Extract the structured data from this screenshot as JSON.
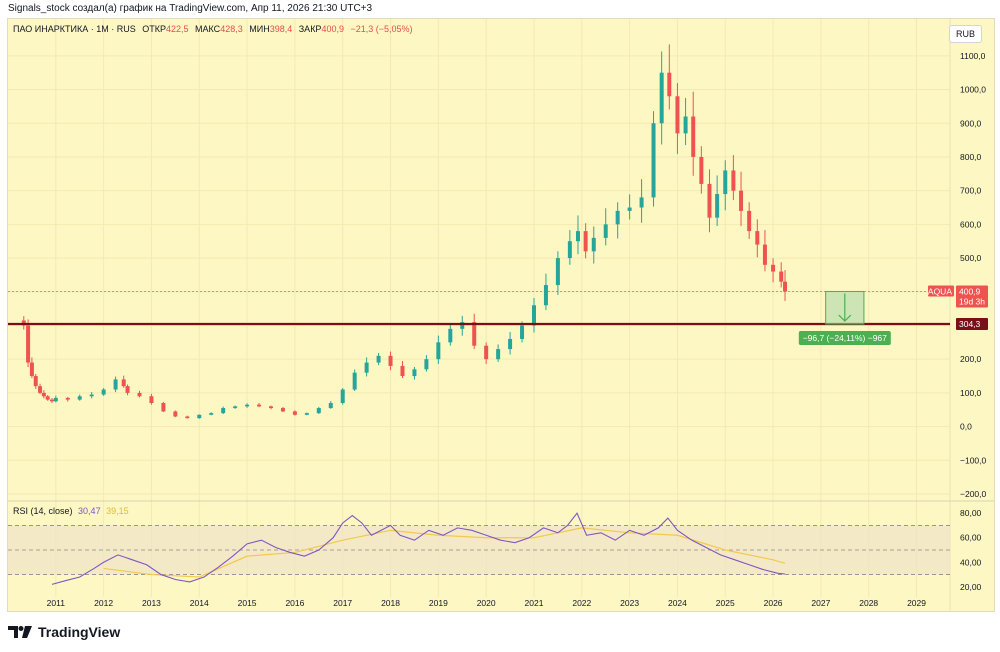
{
  "header": {
    "attribution": "Signals_stock создал(а) график на TradingView.com, Апр 11, 2026 21:30 UTC+3"
  },
  "legend": {
    "symbol": "ПАО ИНАРКТИКА · 1М · RUS",
    "open_label": "ОТКР",
    "open_value": "422,5",
    "high_label": "МАКС",
    "high_value": "428,3",
    "low_label": "МИН",
    "low_value": "398,4",
    "close_label": "ЗАКР",
    "close_value": "400,9",
    "change": "−21,3 (−5,05%)"
  },
  "currency": "RUB",
  "price_tags": {
    "ticker": "AQUA",
    "last_price": "400,9",
    "countdown": "19d 3h",
    "level": "304,3"
  },
  "measure_label": "−96,7 (−24,11%) −967",
  "rsi_legend": {
    "label": "RSI (14, close)",
    "rsi_value": "30,47",
    "ma_value": "39,15"
  },
  "footer": {
    "logo_text": "TradingView"
  },
  "colors": {
    "background": "#fdf7c4",
    "up": "#26a69a",
    "down": "#ef5350",
    "level_line": "#7b0f19",
    "rsi_line": "#7e57c2",
    "rsi_ma": "#f2c94c",
    "measure_box": "#4caf50"
  },
  "chart_data": [
    {
      "type": "candlestick",
      "title": "ПАО ИНАРКТИКА · 1М · RUS",
      "ylabel": "RUB",
      "ylim": [
        -200,
        1150
      ],
      "yticks": [
        -200,
        -100,
        0,
        100,
        200,
        300,
        400,
        500,
        600,
        700,
        800,
        900,
        1000,
        1100
      ],
      "ytick_labels": [
        "−200,0",
        "−100,0",
        "0,0",
        "100,0",
        "200,0",
        "300,0",
        "400,0",
        "500,0",
        "600,0",
        "700,0",
        "800,0",
        "900,0",
        "1000,0",
        "1100,0"
      ],
      "xlim": [
        2010.0,
        2029.7
      ],
      "xticks": [
        2011,
        2012,
        2013,
        2014,
        2015,
        2016,
        2017,
        2018,
        2019,
        2020,
        2021,
        2022,
        2023,
        2024,
        2025,
        2026,
        2027,
        2028,
        2029
      ],
      "x": [
        2010.33,
        2010.42,
        2010.5,
        2010.58,
        2010.67,
        2010.75,
        2010.83,
        2010.92,
        2011.0,
        2011.25,
        2011.5,
        2011.75,
        2012.0,
        2012.25,
        2012.42,
        2012.5,
        2012.75,
        2013.0,
        2013.25,
        2013.5,
        2013.75,
        2014.0,
        2014.25,
        2014.5,
        2014.75,
        2015.0,
        2015.25,
        2015.5,
        2015.75,
        2016.0,
        2016.25,
        2016.5,
        2016.75,
        2017.0,
        2017.25,
        2017.5,
        2017.75,
        2018.0,
        2018.25,
        2018.5,
        2018.75,
        2019.0,
        2019.25,
        2019.5,
        2019.75,
        2020.0,
        2020.25,
        2020.5,
        2020.75,
        2021.0,
        2021.25,
        2021.5,
        2021.75,
        2021.92,
        2022.08,
        2022.25,
        2022.5,
        2022.75,
        2023.0,
        2023.25,
        2023.5,
        2023.67,
        2023.83,
        2024.0,
        2024.17,
        2024.33,
        2024.5,
        2024.67,
        2024.83,
        2025.0,
        2025.17,
        2025.33,
        2025.5,
        2025.67,
        2025.83,
        2026.0,
        2026.17,
        2026.25
      ],
      "close": [
        300,
        190,
        150,
        120,
        100,
        90,
        80,
        75,
        85,
        80,
        90,
        95,
        110,
        140,
        120,
        100,
        90,
        70,
        45,
        30,
        25,
        35,
        40,
        55,
        60,
        65,
        60,
        55,
        45,
        35,
        40,
        55,
        70,
        110,
        160,
        190,
        210,
        180,
        150,
        170,
        200,
        250,
        290,
        310,
        240,
        200,
        230,
        260,
        300,
        360,
        420,
        500,
        550,
        580,
        520,
        560,
        600,
        640,
        650,
        680,
        900,
        1050,
        980,
        870,
        920,
        800,
        720,
        620,
        690,
        760,
        700,
        640,
        580,
        540,
        480,
        460,
        430,
        400.9
      ]
    },
    {
      "type": "line",
      "title": "RSI (14, close)",
      "ylim": [
        15,
        85
      ],
      "yticks": [
        20,
        40,
        60,
        80
      ],
      "ytick_labels": [
        "20,00",
        "40,00",
        "60,00",
        "80,00"
      ],
      "bands": [
        30,
        50,
        70
      ],
      "series": [
        {
          "name": "RSI",
          "last": 30.47,
          "x": [
            2010.92,
            2011.2,
            2011.5,
            2011.8,
            2012.0,
            2012.3,
            2012.6,
            2012.9,
            2013.2,
            2013.5,
            2013.8,
            2014.1,
            2014.4,
            2014.7,
            2015.0,
            2015.3,
            2015.6,
            2015.9,
            2016.2,
            2016.5,
            2016.8,
            2017.0,
            2017.2,
            2017.4,
            2017.6,
            2017.8,
            2018.0,
            2018.2,
            2018.5,
            2018.8,
            2019.1,
            2019.4,
            2019.7,
            2020.0,
            2020.3,
            2020.6,
            2020.9,
            2021.2,
            2021.5,
            2021.7,
            2021.9,
            2022.1,
            2022.4,
            2022.7,
            2023.0,
            2023.3,
            2023.6,
            2023.8,
            2024.0,
            2024.3,
            2024.6,
            2024.9,
            2025.2,
            2025.5,
            2025.8,
            2026.1,
            2026.25
          ],
          "values": [
            22,
            25,
            28,
            35,
            40,
            46,
            42,
            38,
            30,
            26,
            24,
            28,
            36,
            45,
            55,
            58,
            52,
            48,
            45,
            50,
            60,
            72,
            78,
            72,
            62,
            66,
            70,
            62,
            58,
            66,
            62,
            68,
            66,
            62,
            58,
            56,
            60,
            68,
            64,
            70,
            80,
            62,
            64,
            58,
            66,
            62,
            68,
            76,
            66,
            58,
            52,
            46,
            42,
            38,
            34,
            31,
            30.47
          ]
        },
        {
          "name": "RSI MA",
          "last": 39.15,
          "x": [
            2012.0,
            2013.0,
            2014.0,
            2015.0,
            2016.0,
            2017.0,
            2018.0,
            2019.0,
            2020.0,
            2021.0,
            2022.0,
            2023.0,
            2024.0,
            2025.0,
            2026.0,
            2026.25
          ],
          "values": [
            35,
            30,
            28,
            45,
            48,
            58,
            66,
            62,
            60,
            60,
            68,
            64,
            62,
            50,
            42,
            39.15
          ]
        }
      ]
    }
  ]
}
